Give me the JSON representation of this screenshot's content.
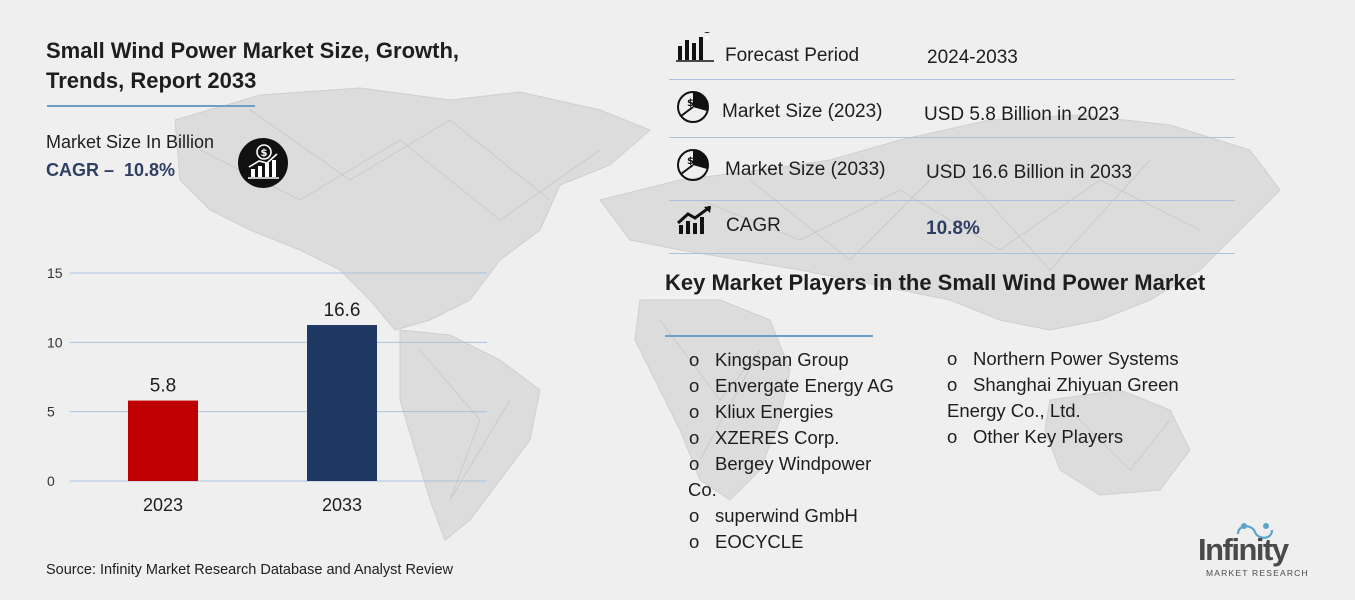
{
  "header": {
    "title": "Small Wind Power Market Size, Growth, Trends, Report 2033",
    "market_size_label": "Market Size In Billion",
    "cagr_label": "CAGR –",
    "cagr_value": "10.8%"
  },
  "chart_data": {
    "type": "bar",
    "categories": [
      "2023",
      "2033"
    ],
    "values": [
      5.8,
      16.6
    ],
    "data_labels": [
      "5.8",
      "16.6"
    ],
    "bar_colors": [
      "#c00000",
      "#1f3864"
    ],
    "yticks": [
      "0",
      "5",
      "10",
      "15"
    ],
    "ylim": [
      0,
      15
    ],
    "grid": true,
    "title": "",
    "xlabel": "",
    "ylabel": ""
  },
  "info_table": {
    "rows": [
      {
        "label": "Forecast Period",
        "value": "2024-2033",
        "icon": "bar-chart-pin-icon"
      },
      {
        "label": "Market Size (2023)",
        "value": "USD 5.8 Billion in 2023",
        "icon": "dollar-pie-icon"
      },
      {
        "label": "Market Size (2033)",
        "value": "USD  16.6 Billion in 2033",
        "icon": "dollar-pie-icon"
      },
      {
        "label": "CAGR",
        "value": "10.8%",
        "icon": "growth-chart-icon"
      }
    ]
  },
  "players": {
    "title": "Key Market Players in the Small Wind Power Market",
    "bullet": "o",
    "col1": [
      "Kingspan Group",
      "Envergate Energy AG",
      "Kliux Energies",
      "XZERES Corp.",
      "Bergey Windpower",
      "Co.",
      "superwind GmbH",
      "EOCYCLE"
    ],
    "col2": [
      "Northern Power Systems",
      "Shanghai Zhiyuan Green",
      "Energy Co., Ltd.",
      "Other Key Players"
    ]
  },
  "footer": {
    "source": "Source: Infinity Market Research Database and Analyst Review"
  },
  "logo": {
    "name": "Infinity",
    "subtitle": "MARKET RESEARCH"
  },
  "colors": {
    "accent_blue": "#2e3f63",
    "rule_blue": "#6f9ec8",
    "bar_red": "#c00000",
    "bar_navy": "#1f3864"
  }
}
